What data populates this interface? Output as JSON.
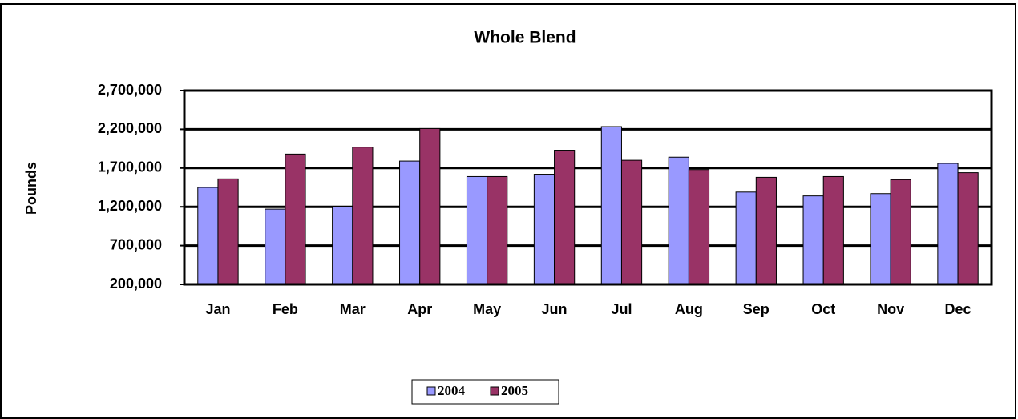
{
  "chart_data": {
    "type": "bar",
    "title": "Whole Blend",
    "y_label": "Pounds",
    "categories": [
      "Jan",
      "Feb",
      "Mar",
      "Apr",
      "May",
      "Jun",
      "Jul",
      "Aug",
      "Sep",
      "Oct",
      "Nov",
      "Dec"
    ],
    "series": [
      {
        "name": "2004",
        "color": "#9999ff",
        "values": [
          1450000,
          1170000,
          1200000,
          1790000,
          1590000,
          1620000,
          2235000,
          1840000,
          1390000,
          1340000,
          1370000,
          1760000
        ]
      },
      {
        "name": "2005",
        "color": "#993366",
        "values": [
          1560000,
          1880000,
          1970000,
          2210000,
          1590000,
          1930000,
          1800000,
          1680000,
          1580000,
          1590000,
          1550000,
          1640000
        ]
      }
    ],
    "ylim": [
      200000,
      2700000
    ],
    "yticks": [
      {
        "value": 200000,
        "label": "200,000"
      },
      {
        "value": 700000,
        "label": "700,000"
      },
      {
        "value": 1200000,
        "label": "1,200,000"
      },
      {
        "value": 1700000,
        "label": "1,700,000"
      },
      {
        "value": 2200000,
        "label": "2,200,000"
      },
      {
        "value": 2700000,
        "label": "2,700,000"
      }
    ],
    "grid": true,
    "legend": "bottom"
  }
}
